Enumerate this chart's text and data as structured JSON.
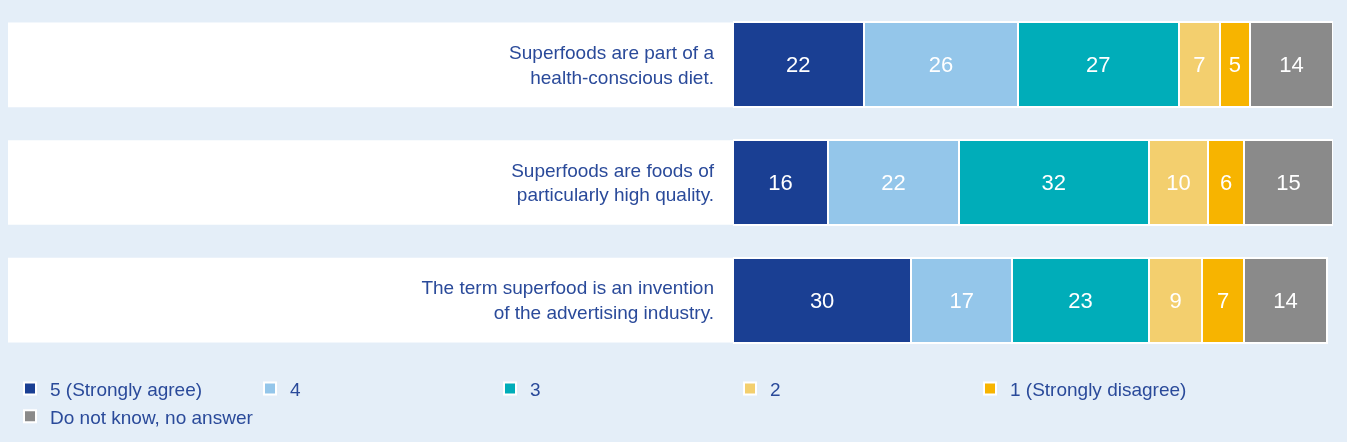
{
  "chart_data": {
    "type": "bar",
    "orientation": "horizontal",
    "stacked": true,
    "data_labels": true,
    "legend": "bottom",
    "categories": [
      "Superfoods are part of a\nhealth-conscious diet.",
      "Superfoods are foods of\nparticularly high quality.",
      "The term superfood is an invention\nof the advertising industry."
    ],
    "series": [
      {
        "name": "5 (Strongly agree)",
        "color": "#1a3f93",
        "values": [
          22,
          16,
          30
        ]
      },
      {
        "name": "4",
        "color": "#94c6ea",
        "values": [
          26,
          22,
          17
        ]
      },
      {
        "name": "3",
        "color": "#00adb9",
        "values": [
          27,
          32,
          23
        ]
      },
      {
        "name": "2",
        "color": "#f3cf6e",
        "values": [
          7,
          10,
          9
        ]
      },
      {
        "name": "1 (Strongly disagree)",
        "color": "#f7b400",
        "values": [
          5,
          6,
          7
        ]
      },
      {
        "name": "Do not know, no answer",
        "color": "#8a8a8a",
        "values": [
          14,
          15,
          14
        ]
      }
    ]
  }
}
